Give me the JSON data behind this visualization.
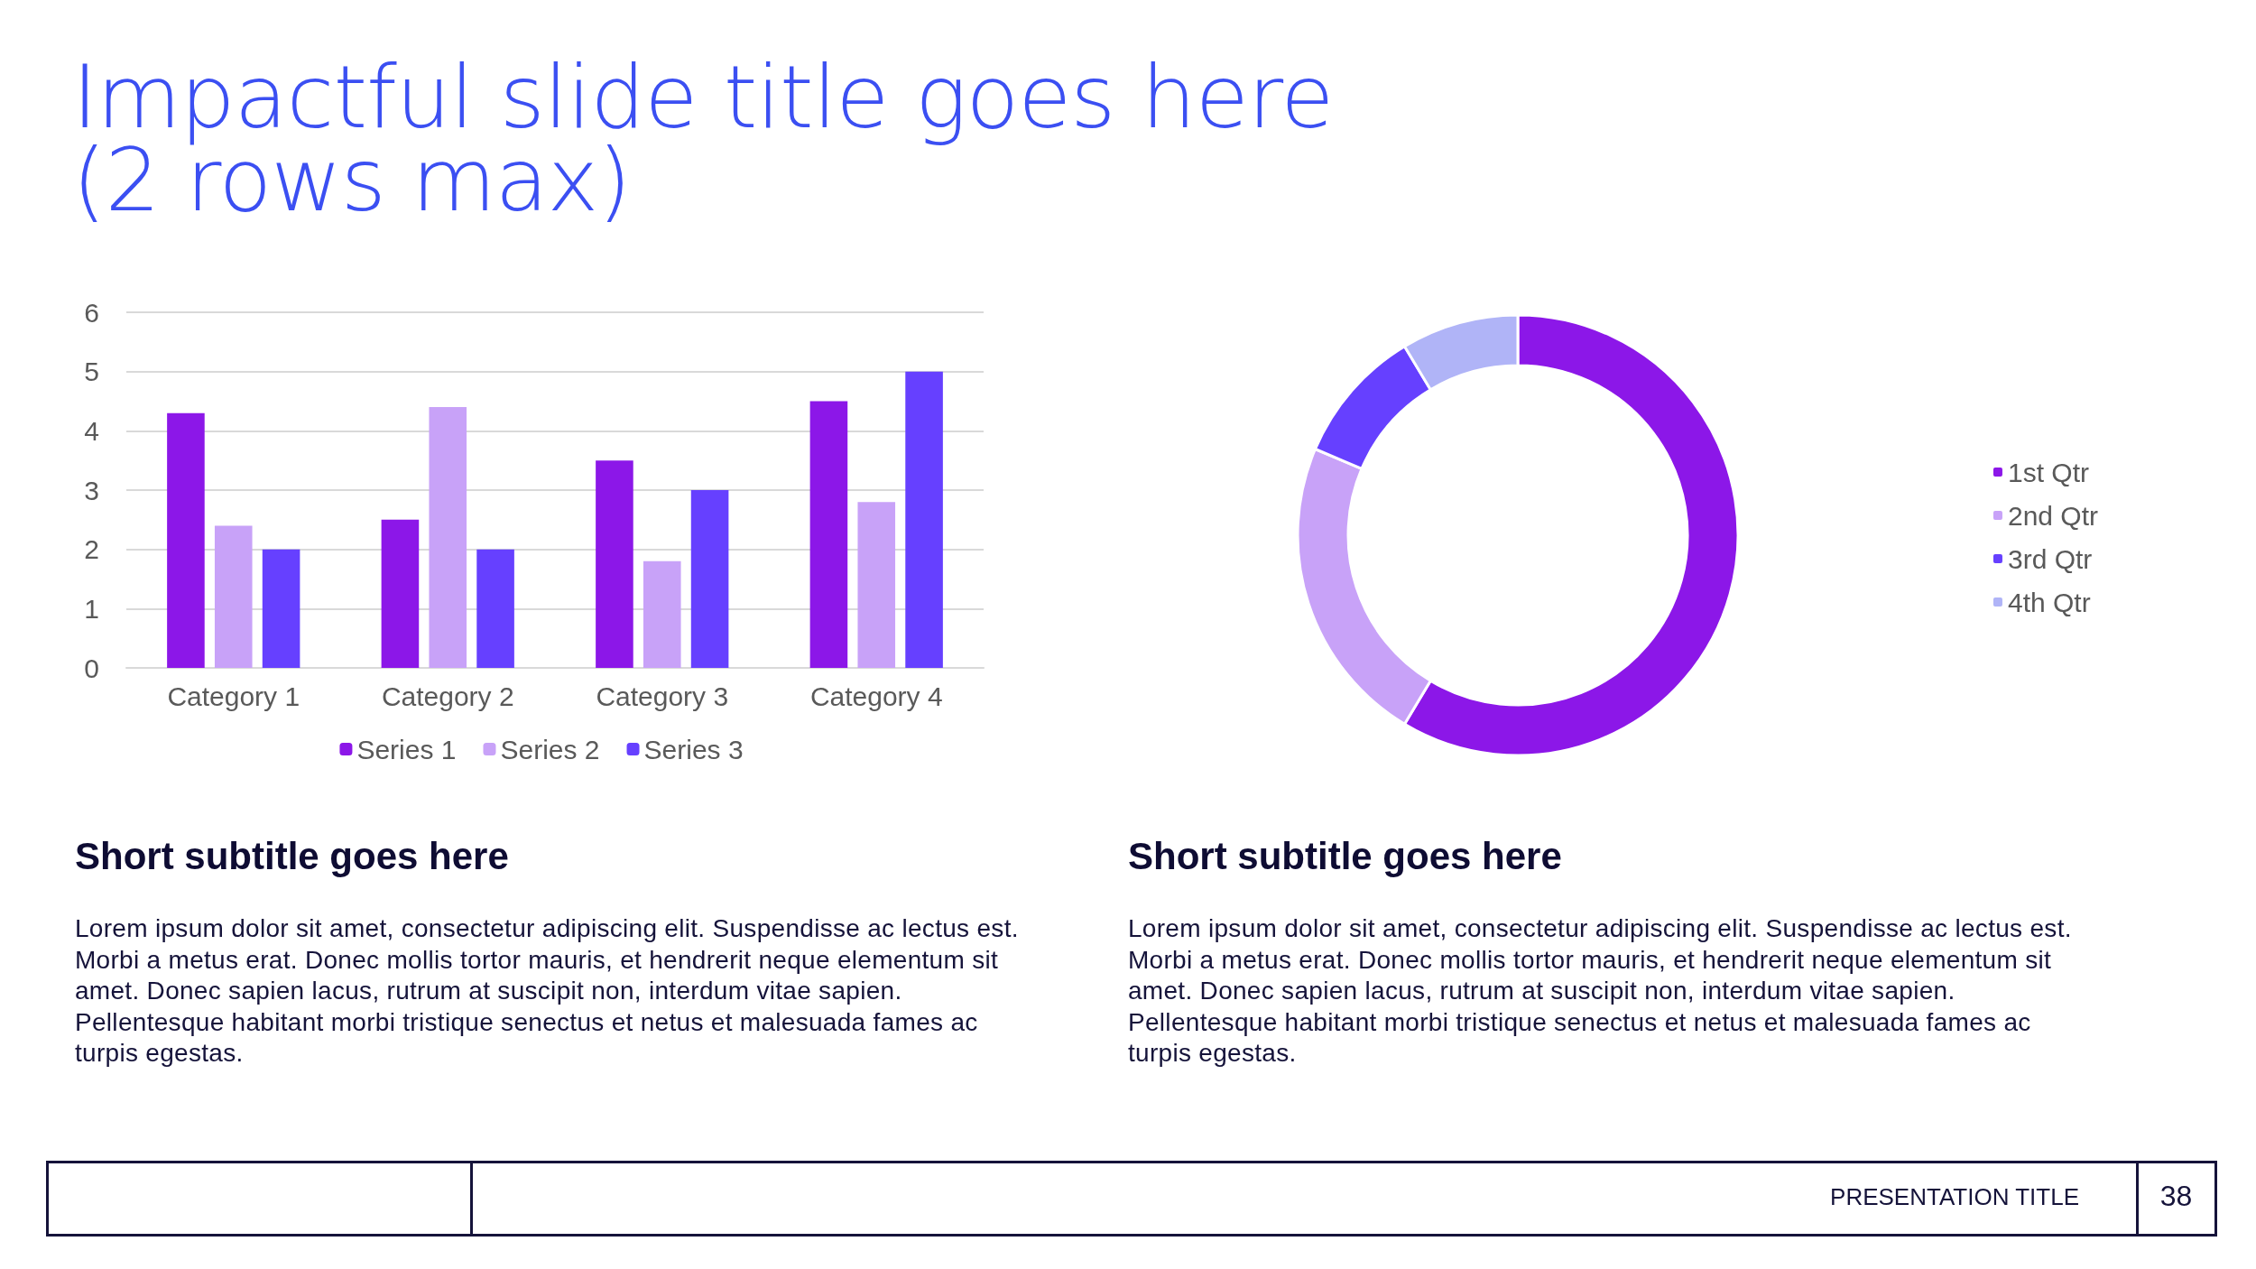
{
  "chart_data": [
    {
      "type": "bar",
      "title": "Impactful slide title goes here\n(2 rows max)",
      "subtitle": "Short subtitle goes here",
      "categories": [
        "Category 1",
        "Category 2",
        "Category 3",
        "Category 4"
      ],
      "series": [
        {
          "name": "Series 1",
          "color": "#8c17e8",
          "values": [
            4.3,
            2.5,
            3.5,
            4.5
          ]
        },
        {
          "name": "Series 2",
          "color": "#c8a2f8",
          "values": [
            2.4,
            4.4,
            1.8,
            2.8
          ]
        },
        {
          "name": "Series 3",
          "color": "#6640ff",
          "values": [
            2,
            2,
            3,
            5
          ]
        }
      ],
      "ylim": [
        0,
        6
      ],
      "yticks": [
        0,
        1,
        2,
        3,
        4,
        5,
        6
      ],
      "grid": "y",
      "legend": "bottom",
      "annotations": [
        "Lorem ipsum dolor sit amet, consectetur adipiscing elit. Suspendisse ac lectus est. Morbi a metus erat. Donec mollis tortor mauris, et hendrerit neque elementum sit amet. Donec sapien lacus, rutrum at suscipit non, interdum vitae sapien. Pellentesque habitant morbi tristique senectus et netus et malesuada fames ac turpis egestas."
      ]
    },
    {
      "type": "donut",
      "subtitle": "Short subtitle goes here",
      "categories": [
        "1st Qtr",
        "2nd Qtr",
        "3rd Qtr",
        "4th Qtr"
      ],
      "values": [
        58.6,
        22.8,
        10.0,
        8.6
      ],
      "colors": [
        "#8c17e8",
        "#c8a2f8",
        "#6640ff",
        "#b0b4f7"
      ],
      "legend": "right",
      "annotations": [
        "Lorem ipsum dolor sit amet, consectetur adipiscing elit. Suspendisse ac lectus est. Morbi a metus erat. Donec mollis tortor mauris, et hendrerit neque elementum sit amet. Donec sapien lacus, rutrum at suscipit non, interdum vitae sapien. Pellentesque habitant morbi tristique senectus et netus et malesuada fames ac turpis egestas.",
        "PRESENTATION TITLE",
        "38"
      ]
    }
  ]
}
